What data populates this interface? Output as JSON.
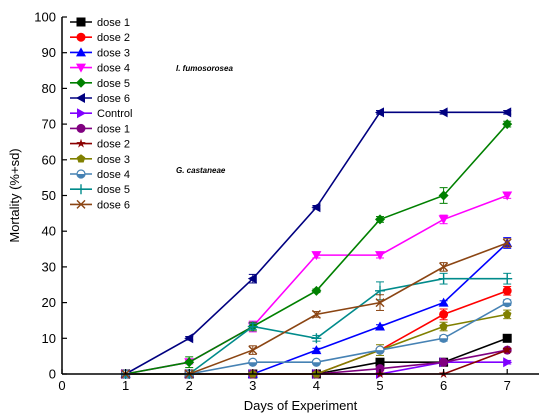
{
  "chart_data": {
    "type": "line",
    "title": "",
    "xlabel": "Days of Experiment",
    "ylabel": "Mortality (%+sd)",
    "xlim": [
      0,
      7.5
    ],
    "ylim": [
      0,
      100
    ],
    "xticks": [
      0,
      1,
      2,
      3,
      4,
      5,
      6,
      7
    ],
    "yticks": [
      0,
      10,
      20,
      30,
      40,
      50,
      60,
      70,
      80,
      90,
      100
    ],
    "grid": false,
    "legend_position": "top-left",
    "group_labels": [
      "I. fumosorosea",
      "G. castaneae"
    ],
    "x": [
      1,
      2,
      3,
      4,
      5,
      6,
      7
    ],
    "series": [
      {
        "name": "dose 1",
        "group": "I. fumosorosea",
        "color": "#000000",
        "marker": "square",
        "values": [
          0,
          0,
          0,
          0,
          3.3,
          3.3,
          10
        ],
        "sd": [
          0,
          0,
          0,
          0,
          0,
          0.5,
          0.5
        ]
      },
      {
        "name": "dose 2",
        "group": "I. fumosorosea",
        "color": "#ff0000",
        "marker": "circle",
        "values": [
          0,
          0,
          0,
          0,
          6.7,
          16.7,
          23.3
        ],
        "sd": [
          0,
          0,
          0,
          0,
          0.5,
          1.5,
          1.2
        ]
      },
      {
        "name": "dose 3",
        "group": "I. fumosorosea",
        "color": "#0000ff",
        "marker": "triangle-up",
        "values": [
          0,
          0,
          0,
          6.7,
          13.3,
          20,
          36.7
        ],
        "sd": [
          0,
          0,
          0,
          0.5,
          0.5,
          0.5,
          1.5
        ]
      },
      {
        "name": "dose 4",
        "group": "I. fumosorosea",
        "color": "#ff00ff",
        "marker": "triangle-down",
        "values": [
          0,
          3.3,
          13.3,
          33.3,
          33.3,
          43.3,
          50
        ],
        "sd": [
          0,
          0.5,
          1.5,
          0.8,
          0.8,
          1.2,
          0.8
        ]
      },
      {
        "name": "dose 5",
        "group": "I. fumosorosea",
        "color": "#008000",
        "marker": "diamond",
        "values": [
          0,
          3.3,
          13.3,
          23.3,
          43.3,
          50,
          70
        ],
        "sd": [
          0,
          1.5,
          1.2,
          0.5,
          0.8,
          2.2,
          0.8
        ]
      },
      {
        "name": "dose 6",
        "group": "I. fumosorosea",
        "color": "#000080",
        "marker": "triangle-left",
        "values": [
          0,
          10,
          26.7,
          46.7,
          73.3,
          73.3,
          73.3
        ],
        "sd": [
          0,
          0.5,
          1.2,
          0.5,
          0.5,
          0.5,
          0.5
        ]
      },
      {
        "name": "Control",
        "group": "",
        "color": "#8000ff",
        "marker": "triangle-right",
        "values": [
          0,
          0,
          0,
          0,
          0,
          3.3,
          3.3
        ],
        "sd": [
          0,
          0,
          0,
          0,
          0,
          0.5,
          0.5
        ]
      },
      {
        "name": "dose 1",
        "group": "G. castaneae",
        "color": "#800080",
        "marker": "circle",
        "values": [
          0,
          0,
          0,
          0,
          1.5,
          3.3,
          6.7
        ],
        "sd": [
          0,
          0,
          0,
          0,
          0,
          0.5,
          0.5
        ]
      },
      {
        "name": "dose 2",
        "group": "G. castaneae",
        "color": "#8b0000",
        "marker": "star",
        "values": [
          0,
          0,
          0,
          0,
          0,
          0,
          6.7
        ],
        "sd": [
          0,
          0,
          0,
          0,
          0,
          0,
          0.5
        ]
      },
      {
        "name": "dose 3",
        "group": "G. castaneae",
        "color": "#808000",
        "marker": "pentagon",
        "values": [
          0,
          0,
          0,
          0,
          6.7,
          13.3,
          16.7
        ],
        "sd": [
          0,
          0,
          0,
          0,
          1.5,
          1.2,
          1.2
        ]
      },
      {
        "name": "dose 4",
        "group": "G. castaneae",
        "color": "#4682b4",
        "marker": "circle-half",
        "values": [
          0,
          0,
          3.3,
          3.3,
          6.7,
          10,
          20
        ],
        "sd": [
          0,
          0,
          0.5,
          0.5,
          0.5,
          0.8,
          0.8
        ]
      },
      {
        "name": "dose 5",
        "group": "G. castaneae",
        "color": "#008b8b",
        "marker": "plus",
        "values": [
          0,
          0,
          13.3,
          10,
          23.3,
          26.7,
          26.7
        ],
        "sd": [
          0,
          0,
          0.8,
          0.8,
          2.5,
          1.5,
          1.5
        ]
      },
      {
        "name": "dose 6",
        "group": "G. castaneae",
        "color": "#8b4513",
        "marker": "x",
        "values": [
          0,
          0,
          6.7,
          16.7,
          20,
          30,
          36.7
        ],
        "sd": [
          0,
          0,
          1.2,
          0.8,
          2.2,
          1.2,
          1.2
        ]
      }
    ]
  }
}
